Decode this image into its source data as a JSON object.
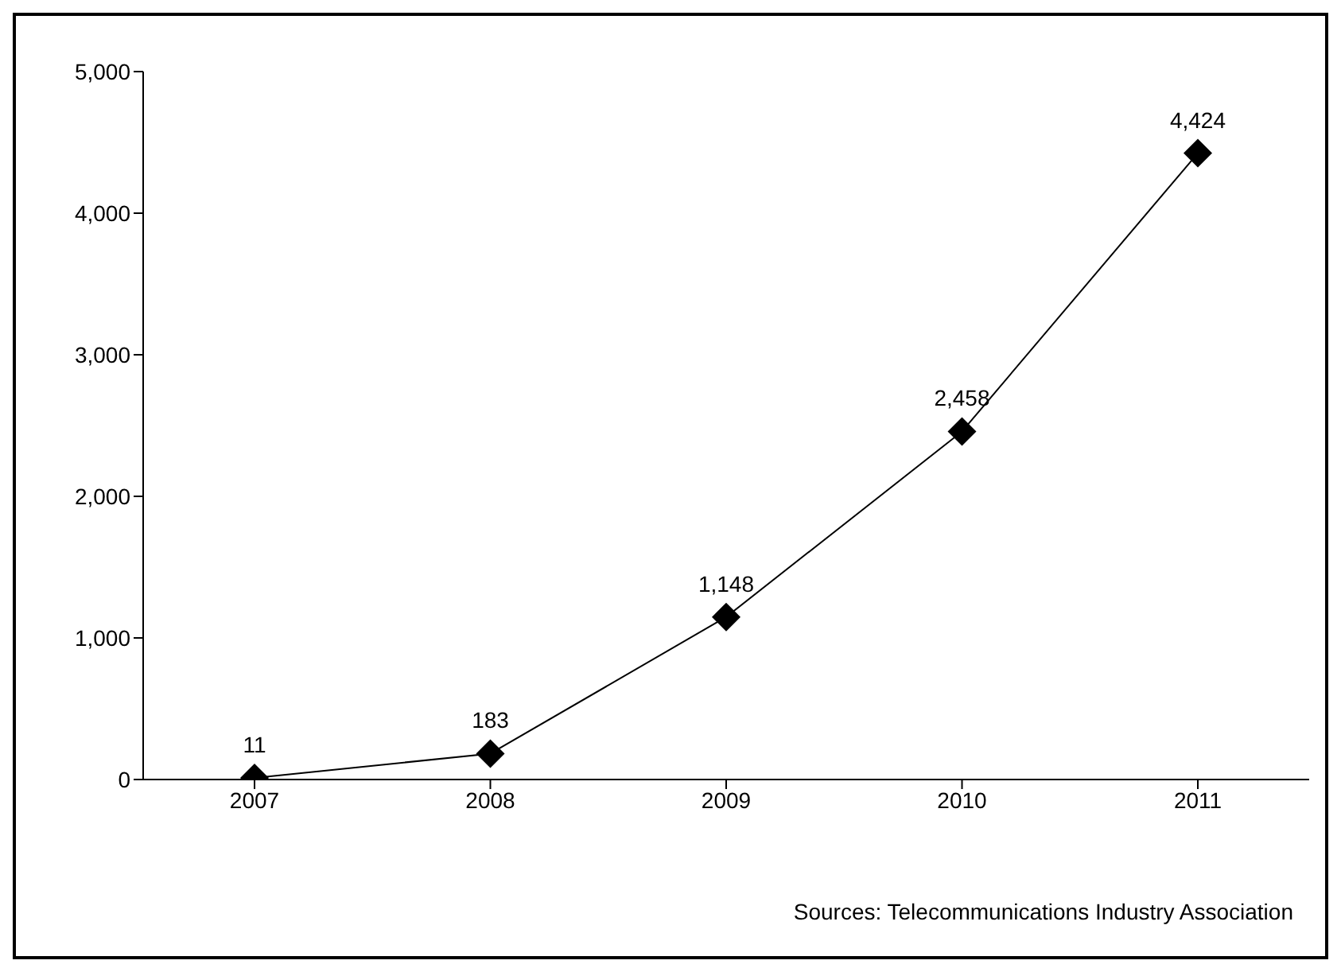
{
  "chart_data": {
    "type": "line",
    "categories": [
      "2007",
      "2008",
      "2009",
      "2010",
      "2011"
    ],
    "series": [
      {
        "color": "#000000",
        "values": [
          11,
          183,
          1148,
          2458,
          4424
        ],
        "value_labels": [
          "11",
          "183",
          "1,148",
          "2,458",
          "4,424"
        ]
      }
    ],
    "ylim": [
      0,
      5000
    ],
    "yticks": [
      {
        "value": 0,
        "label": "0"
      },
      {
        "value": 1000,
        "label": "1,000"
      },
      {
        "value": 2000,
        "label": "2,000"
      },
      {
        "value": 3000,
        "label": "3,000"
      },
      {
        "value": 4000,
        "label": "4,000"
      },
      {
        "value": 5000,
        "label": "5,000"
      }
    ],
    "grid": false,
    "marker": "diamond",
    "line_style": "solid",
    "annotations": [
      "Sources: Telecommunications Industry Association"
    ]
  }
}
